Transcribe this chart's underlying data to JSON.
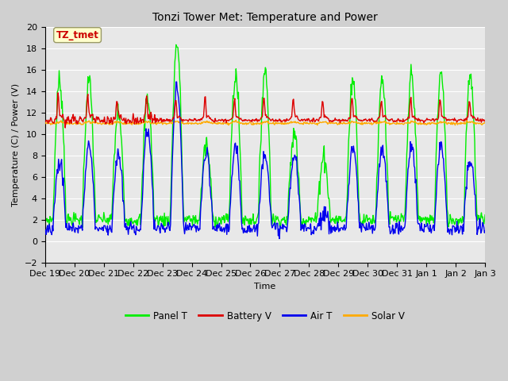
{
  "title": "Tonzi Tower Met: Temperature and Power",
  "xlabel": "Time",
  "ylabel": "Temperature (C) / Power (V)",
  "ylim": [
    -2,
    20
  ],
  "yticks": [
    -2,
    0,
    2,
    4,
    6,
    8,
    10,
    12,
    14,
    16,
    18,
    20
  ],
  "xtick_labels": [
    "Dec 19",
    "Dec 20",
    "Dec 21",
    "Dec 22",
    "Dec 23",
    "Dec 24",
    "Dec 25",
    "Dec 26",
    "Dec 27",
    "Dec 28",
    "Dec 29",
    "Dec 30",
    "Dec 31",
    "Jan 1",
    "Jan 2",
    "Jan 3"
  ],
  "annotation_text": "TZ_tmet",
  "annotation_color": "#cc0000",
  "annotation_bg": "#ffffcc",
  "line_colors": {
    "panel_t": "#00ee00",
    "battery_v": "#dd0000",
    "air_t": "#0000ee",
    "solar_v": "#ffaa00"
  },
  "legend_labels": [
    "Panel T",
    "Battery V",
    "Air T",
    "Solar V"
  ],
  "fig_bg": "#d0d0d0",
  "plot_bg": "#e8e8e8",
  "grid_color": "#ffffff",
  "font_size": 8,
  "title_fontsize": 10
}
